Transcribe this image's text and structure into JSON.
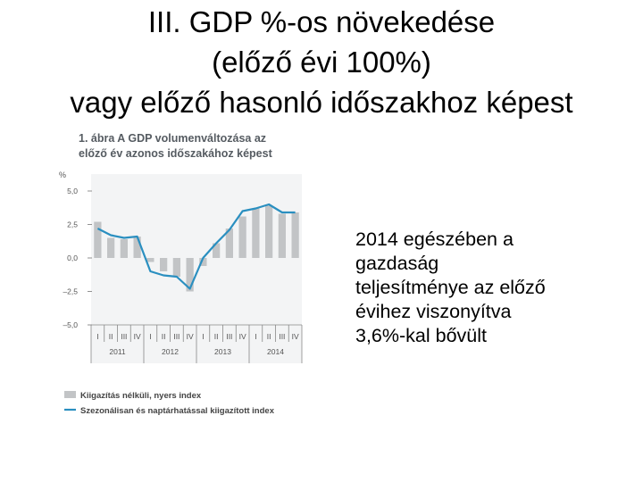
{
  "slide": {
    "title_lines": [
      "III. GDP %-os növekedése",
      "(előző évi 100%)",
      "vagy előző hasonló időszakhoz képest"
    ],
    "body_lines": [
      "2014 egészében a",
      "gazdaság",
      "teljesítménye az előző",
      "évihez viszonyítva",
      "3,6%-kal bővült"
    ]
  },
  "chart_data": {
    "type": "bar",
    "title_lines": [
      "1. ábra A GDP volumenváltozása az",
      "előző év azonos időszakához képest"
    ],
    "ylabel": "%",
    "ylim": [
      -5.0,
      5.0
    ],
    "yticks": [
      "5,0",
      "2,5",
      "0,0",
      "–2,5",
      "–5,0"
    ],
    "ytick_values": [
      5.0,
      2.5,
      0.0,
      -2.5,
      -5.0
    ],
    "categories": [
      "I",
      "II",
      "III",
      "IV",
      "I",
      "II",
      "III",
      "IV",
      "I",
      "II",
      "III",
      "IV",
      "I",
      "II",
      "III",
      "IV"
    ],
    "years": [
      "2011",
      "2012",
      "2013",
      "2014"
    ],
    "grid": false,
    "legend_position": "bottom",
    "series": [
      {
        "name": "Kiigazítás nélküli, nyers index",
        "kind": "bar",
        "color": "#c2c4c6",
        "values": [
          2.7,
          1.5,
          1.4,
          1.6,
          -0.3,
          -1.0,
          -1.4,
          -2.5,
          -0.6,
          1.1,
          2.2,
          3.1,
          3.7,
          3.9,
          3.3,
          3.4
        ]
      },
      {
        "name": "Szezonálisan és naptárhatással kiigazított index",
        "kind": "line",
        "color": "#2a8fc0",
        "values": [
          2.2,
          1.7,
          1.5,
          1.6,
          -1.0,
          -1.3,
          -1.4,
          -2.3,
          0.0,
          1.1,
          2.1,
          3.5,
          3.7,
          4.0,
          3.4,
          3.4
        ]
      }
    ]
  }
}
